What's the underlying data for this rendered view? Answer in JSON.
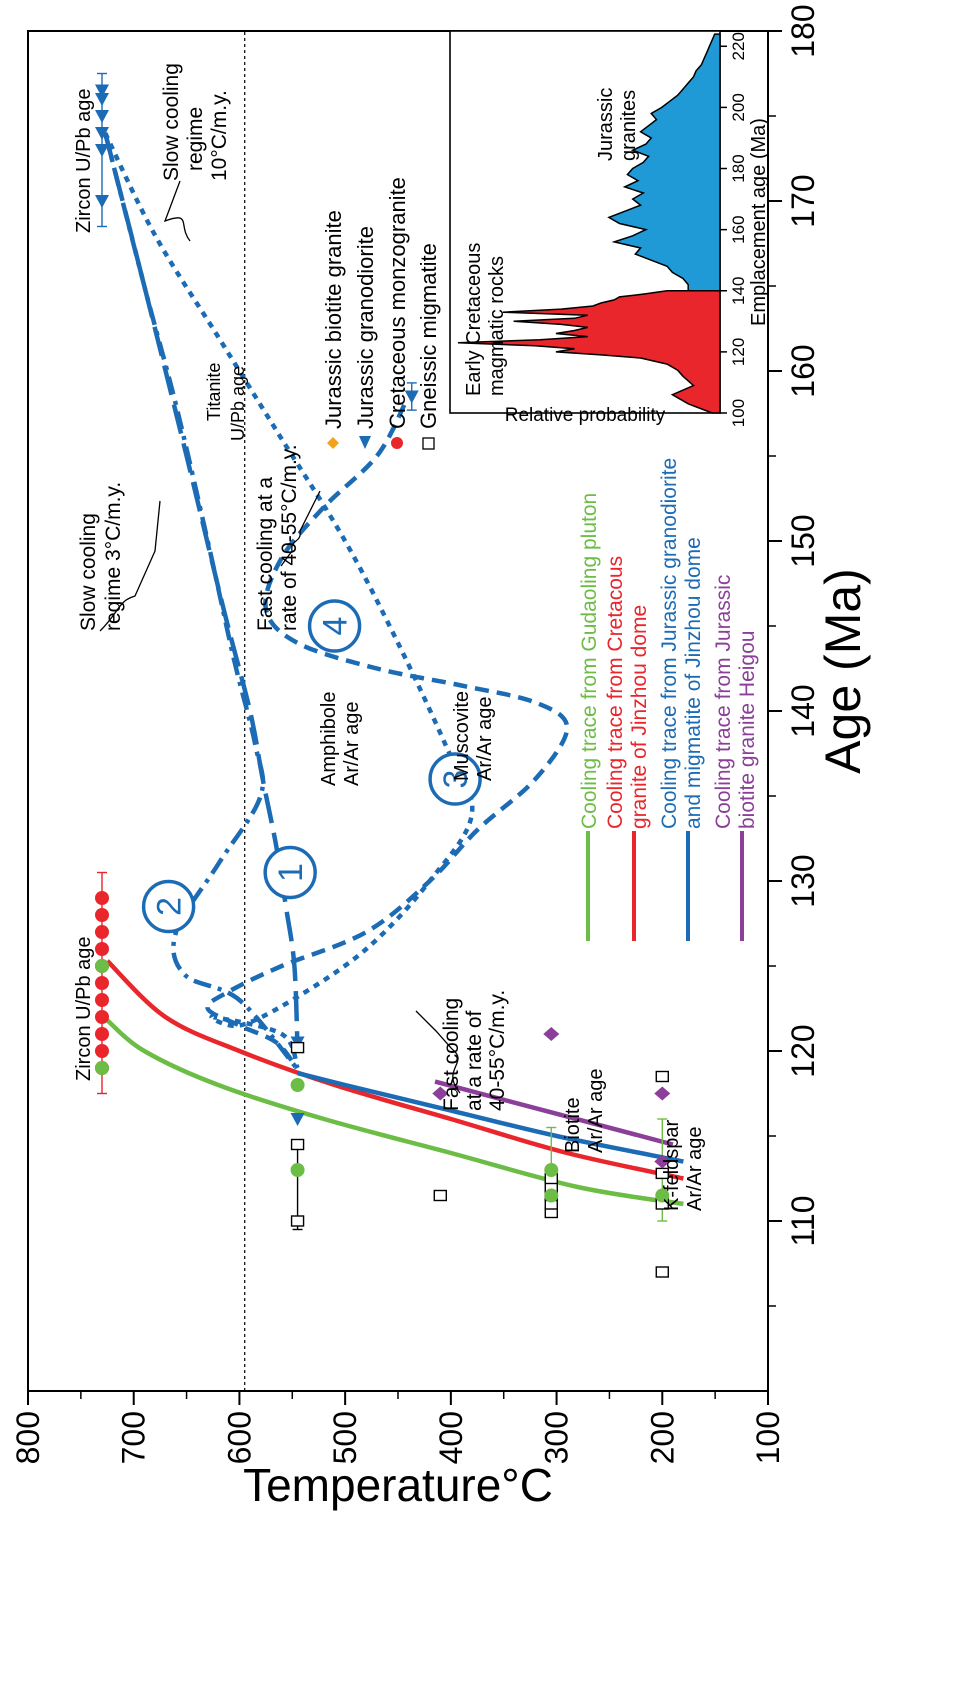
{
  "chart_data": [
    {
      "type": "scatter",
      "title": "",
      "xlabel": "Age (Ma)",
      "ylabel": "Temperature°C",
      "xlim": [
        100,
        180
      ],
      "ylim": [
        100,
        800
      ],
      "xticks": [
        "110",
        "120",
        "130",
        "140",
        "150",
        "160",
        "170",
        "180"
      ],
      "yticks": [
        "100",
        "200",
        "300",
        "400",
        "500",
        "600",
        "700",
        "800"
      ],
      "reference_line": {
        "temperature": 595,
        "style": "dotted"
      },
      "series": [
        {
          "name": "Jurassic biotite granite",
          "marker": "diamond",
          "color": "#f4a21c",
          "points": []
        },
        {
          "name": "Jurassic granodiorite",
          "marker": "triangle",
          "color": "#1c6bb5",
          "points": [
            [
              170,
              730
            ],
            [
              173,
              730
            ],
            [
              174,
              730
            ],
            [
              175,
              730
            ],
            [
              176,
              730
            ],
            [
              176.5,
              730
            ],
            [
              158.5,
              437
            ],
            [
              116,
              545
            ],
            [
              120.5,
              545
            ]
          ]
        },
        {
          "name": "Cretaceous monzogranite",
          "marker": "circle",
          "color": "#e8262c",
          "points": [
            [
              119,
              730
            ],
            [
              120,
              730
            ],
            [
              121,
              730
            ],
            [
              122,
              730
            ],
            [
              123,
              730
            ],
            [
              124,
              730
            ],
            [
              125,
              730
            ],
            [
              126,
              730
            ],
            [
              127,
              730
            ],
            [
              128,
              730
            ],
            [
              129,
              730
            ]
          ]
        },
        {
          "name": "Gneissic migmatite",
          "marker": "open-square",
          "color": "#000000",
          "points": [
            [
              110,
              545
            ],
            [
              114.5,
              545
            ],
            [
              120.2,
              545
            ],
            [
              111.5,
              410
            ],
            [
              110.5,
              305
            ],
            [
              111,
              305
            ],
            [
              111.5,
              305
            ],
            [
              112,
              305
            ],
            [
              112.5,
              305
            ],
            [
              107,
              200
            ],
            [
              111,
              200
            ],
            [
              112.8,
              200
            ],
            [
              118.5,
              200
            ]
          ]
        },
        {
          "name": "Cooling trace from Gudaoling pluton",
          "marker": "circle",
          "color": "#6cbd45",
          "points": [
            [
              125,
              730
            ],
            [
              119,
              730
            ],
            [
              118,
              545
            ],
            [
              113,
              545
            ],
            [
              113,
              305
            ],
            [
              111.5,
              305
            ],
            [
              111.5,
              200
            ]
          ]
        },
        {
          "name": "Cooling trace from Jurassic biotite granite Heigou",
          "marker": "diamond",
          "color": "#8b3f98",
          "points": [
            [
              117.5,
              410
            ],
            [
              121,
              305
            ],
            [
              117.5,
              200
            ],
            [
              113.5,
              200
            ]
          ]
        }
      ],
      "cooling_traces": [
        {
          "name": "Cooling trace from Gudaoling pluton",
          "color": "#6cbd45",
          "points": [
            [
              121.8,
              725
            ],
            [
              120,
              690
            ],
            [
              118,
              620
            ],
            [
              116,
              520
            ],
            [
              114,
              400
            ],
            [
              112,
              280
            ],
            [
              111,
              180
            ]
          ]
        },
        {
          "name": "Cooling trace from Cretacous granite of Jinzhou dome",
          "color": "#e8262c",
          "points": [
            [
              125.3,
              725
            ],
            [
              122,
              670
            ],
            [
              120,
              600
            ],
            [
              118,
              510
            ],
            [
              116,
              400
            ],
            [
              114,
              290
            ],
            [
              112.5,
              180
            ]
          ]
        },
        {
          "name": "Cooling trace from Jurassic granodiorite and migmatite of Jinzhou dome",
          "color": "#1c6bb5",
          "points": [
            [
              118.7,
              545
            ],
            [
              118,
              500
            ],
            [
              116.5,
              400
            ],
            [
              115,
              300
            ],
            [
              113.5,
              180
            ]
          ]
        },
        {
          "name": "Cooling trace from Jurassic biotite granite Heigou",
          "color": "#8b3f98",
          "points": [
            [
              118.2,
              415
            ],
            [
              114.5,
              190
            ]
          ]
        }
      ],
      "dashed_paths": [
        {
          "label": "1",
          "style": "long-dash",
          "points": [
            [
              174,
              727
            ],
            [
              165,
              690
            ],
            [
              155,
              650
            ],
            [
              146,
              615
            ],
            [
              140,
              590
            ],
            [
              136,
              578
            ],
            [
              132,
              565
            ],
            [
              128.5,
              556
            ],
            [
              125,
              548
            ],
            [
              120,
              545
            ]
          ]
        },
        {
          "label": "2",
          "style": "dash-dot",
          "points": [
            [
              174,
              727
            ],
            [
              165,
              690
            ],
            [
              158,
              660
            ],
            [
              150,
              630
            ],
            [
              143,
              605
            ],
            [
              138,
              585
            ],
            [
              135,
              580
            ],
            [
              131,
              620
            ],
            [
              127,
              660
            ],
            [
              124.5,
              652
            ],
            [
              123,
              600
            ],
            [
              119,
              546
            ]
          ]
        },
        {
          "label": "3",
          "style": "dotted",
          "points": [
            [
              174,
              727
            ],
            [
              168,
              680
            ],
            [
              162,
              620
            ],
            [
              156,
              560
            ],
            [
              150,
              500
            ],
            [
              144,
              450
            ],
            [
              138,
              405
            ],
            [
              134,
              380
            ],
            [
              130,
              420
            ],
            [
              126,
              480
            ],
            [
              123,
              550
            ],
            [
              121.5,
              600
            ],
            [
              122,
              625
            ],
            [
              121,
              560
            ],
            [
              119,
              545
            ]
          ]
        },
        {
          "label": "4",
          "style": "dashed",
          "points": [
            [
              158,
              444
            ],
            [
              155,
              470
            ],
            [
              152,
              520
            ],
            [
              149,
              560
            ],
            [
              146,
              575
            ],
            [
              144,
              545
            ],
            [
              142.5,
              470
            ],
            [
              141.5,
              390
            ],
            [
              140.5,
              320
            ],
            [
              139,
              290
            ],
            [
              136,
              320
            ],
            [
              133,
              375
            ],
            [
              130,
              420
            ],
            [
              127,
              480
            ],
            [
              125,
              560
            ],
            [
              123.5,
              610
            ],
            [
              122.5,
              630
            ],
            [
              121.5,
              600
            ],
            [
              120.5,
              565
            ],
            [
              119,
              546
            ]
          ]
        }
      ],
      "annotations": [
        "Zircon U/Pb age",
        "Zircon U/Pb age",
        "Titanite U/Pb age",
        "Amphibole Ar/Ar age",
        "Muscovite Ar/Ar age",
        "Biotite Ar/Ar age",
        "K-feldspar Ar/Ar age",
        "Fast cooling at a rate of 40-55°C/m.y.",
        "Fast cooling at a rate of 40-55°C/m.y.",
        "Slow cooling regime 3°C/m.y.",
        "Slow cooling regime 10°C/m.y."
      ],
      "path_labels": [
        "1",
        "2",
        "3",
        "4"
      ]
    },
    {
      "type": "area",
      "title": "",
      "xlabel": "Emplacement age (Ma)",
      "ylabel": "Relative probability",
      "xlim": [
        100,
        225
      ],
      "xticks": [
        "100",
        "120",
        "140",
        "160",
        "180",
        "200",
        "220"
      ],
      "series": [
        {
          "name": "Early Cretaceous magmatic rocks",
          "color": "#e8262c",
          "x": [
            100,
            103,
            106,
            109,
            112,
            114,
            116,
            118,
            119,
            120,
            121,
            122,
            123,
            124,
            125,
            126,
            127,
            128,
            129,
            130,
            131,
            132,
            133,
            134,
            135,
            136,
            137,
            138,
            139,
            140
          ],
          "values": [
            0.03,
            0.12,
            0.18,
            0.1,
            0.14,
            0.16,
            0.2,
            0.3,
            0.45,
            0.62,
            0.55,
            0.7,
            0.99,
            0.68,
            0.5,
            0.62,
            0.55,
            0.5,
            0.6,
            0.78,
            0.55,
            0.5,
            0.82,
            0.6,
            0.48,
            0.45,
            0.4,
            0.38,
            0.28,
            0.2
          ]
        },
        {
          "name": "Jurassic granites",
          "color": "#1f9ad6",
          "x": [
            140,
            142,
            144,
            146,
            148,
            150,
            152,
            154,
            156,
            158,
            160,
            162,
            164,
            166,
            168,
            170,
            172,
            174,
            176,
            178,
            180,
            182,
            184,
            186,
            188,
            190,
            192,
            194,
            196,
            198,
            200,
            202,
            204,
            206,
            208,
            210,
            212,
            214,
            216,
            218,
            220,
            222,
            224
          ],
          "values": [
            0.12,
            0.12,
            0.14,
            0.18,
            0.2,
            0.26,
            0.32,
            0.3,
            0.4,
            0.33,
            0.28,
            0.38,
            0.42,
            0.36,
            0.3,
            0.33,
            0.29,
            0.36,
            0.31,
            0.35,
            0.33,
            0.29,
            0.27,
            0.33,
            0.28,
            0.26,
            0.3,
            0.27,
            0.24,
            0.26,
            0.22,
            0.19,
            0.16,
            0.14,
            0.12,
            0.1,
            0.09,
            0.07,
            0.06,
            0.05,
            0.04,
            0.03,
            0.02
          ]
        }
      ],
      "annotations": [
        "Early Cretaceous magmatic rocks",
        "Jurassic granites"
      ]
    }
  ],
  "legend_symbols": [
    "Jurassic biotite granite",
    "Jurassic granodiorite",
    "Cretaceous monzogranite",
    "Gneissic migmatite"
  ],
  "legend_lines": [
    "Cooling trace from Gudaoling pluton",
    "Cooling trace from Cretacous granite of Jinzhou dome",
    "Cooling trace from Jurassic granodiorite and migmatite of Jinzhou dome",
    "Cooling trace from Jurassic biotite granite Heigou"
  ],
  "colors": {
    "green": "#6cbd45",
    "red": "#e8262c",
    "blue": "#1c6bb5",
    "purple": "#8b3f98",
    "orange": "#f4a21c"
  }
}
